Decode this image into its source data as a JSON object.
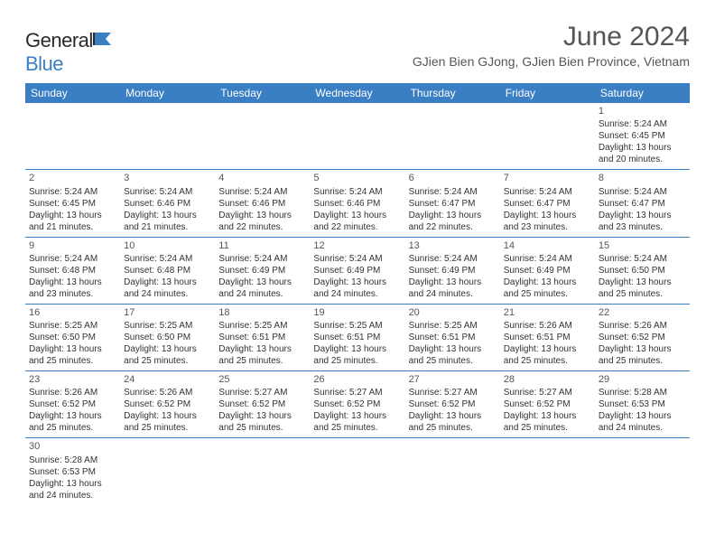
{
  "brand": {
    "name_dark": "General",
    "name_blue": "Blue"
  },
  "title": "June 2024",
  "location": "GJien Bien GJong, GJien Bien Province, Vietnam",
  "colors": {
    "header_bg": "#3a7fc4",
    "header_text": "#ffffff",
    "border": "#3a7fc4",
    "body_text": "#333333",
    "title_text": "#555555"
  },
  "fonts": {
    "title_size": 30,
    "location_size": 14,
    "dayhead_size": 12,
    "cell_size": 10
  },
  "day_headers": [
    "Sunday",
    "Monday",
    "Tuesday",
    "Wednesday",
    "Thursday",
    "Friday",
    "Saturday"
  ],
  "weeks": [
    [
      null,
      null,
      null,
      null,
      null,
      null,
      {
        "d": "1",
        "sr": "Sunrise: 5:24 AM",
        "ss": "Sunset: 6:45 PM",
        "dl1": "Daylight: 13 hours",
        "dl2": "and 20 minutes."
      }
    ],
    [
      {
        "d": "2",
        "sr": "Sunrise: 5:24 AM",
        "ss": "Sunset: 6:45 PM",
        "dl1": "Daylight: 13 hours",
        "dl2": "and 21 minutes."
      },
      {
        "d": "3",
        "sr": "Sunrise: 5:24 AM",
        "ss": "Sunset: 6:46 PM",
        "dl1": "Daylight: 13 hours",
        "dl2": "and 21 minutes."
      },
      {
        "d": "4",
        "sr": "Sunrise: 5:24 AM",
        "ss": "Sunset: 6:46 PM",
        "dl1": "Daylight: 13 hours",
        "dl2": "and 22 minutes."
      },
      {
        "d": "5",
        "sr": "Sunrise: 5:24 AM",
        "ss": "Sunset: 6:46 PM",
        "dl1": "Daylight: 13 hours",
        "dl2": "and 22 minutes."
      },
      {
        "d": "6",
        "sr": "Sunrise: 5:24 AM",
        "ss": "Sunset: 6:47 PM",
        "dl1": "Daylight: 13 hours",
        "dl2": "and 22 minutes."
      },
      {
        "d": "7",
        "sr": "Sunrise: 5:24 AM",
        "ss": "Sunset: 6:47 PM",
        "dl1": "Daylight: 13 hours",
        "dl2": "and 23 minutes."
      },
      {
        "d": "8",
        "sr": "Sunrise: 5:24 AM",
        "ss": "Sunset: 6:47 PM",
        "dl1": "Daylight: 13 hours",
        "dl2": "and 23 minutes."
      }
    ],
    [
      {
        "d": "9",
        "sr": "Sunrise: 5:24 AM",
        "ss": "Sunset: 6:48 PM",
        "dl1": "Daylight: 13 hours",
        "dl2": "and 23 minutes."
      },
      {
        "d": "10",
        "sr": "Sunrise: 5:24 AM",
        "ss": "Sunset: 6:48 PM",
        "dl1": "Daylight: 13 hours",
        "dl2": "and 24 minutes."
      },
      {
        "d": "11",
        "sr": "Sunrise: 5:24 AM",
        "ss": "Sunset: 6:49 PM",
        "dl1": "Daylight: 13 hours",
        "dl2": "and 24 minutes."
      },
      {
        "d": "12",
        "sr": "Sunrise: 5:24 AM",
        "ss": "Sunset: 6:49 PM",
        "dl1": "Daylight: 13 hours",
        "dl2": "and 24 minutes."
      },
      {
        "d": "13",
        "sr": "Sunrise: 5:24 AM",
        "ss": "Sunset: 6:49 PM",
        "dl1": "Daylight: 13 hours",
        "dl2": "and 24 minutes."
      },
      {
        "d": "14",
        "sr": "Sunrise: 5:24 AM",
        "ss": "Sunset: 6:49 PM",
        "dl1": "Daylight: 13 hours",
        "dl2": "and 25 minutes."
      },
      {
        "d": "15",
        "sr": "Sunrise: 5:24 AM",
        "ss": "Sunset: 6:50 PM",
        "dl1": "Daylight: 13 hours",
        "dl2": "and 25 minutes."
      }
    ],
    [
      {
        "d": "16",
        "sr": "Sunrise: 5:25 AM",
        "ss": "Sunset: 6:50 PM",
        "dl1": "Daylight: 13 hours",
        "dl2": "and 25 minutes."
      },
      {
        "d": "17",
        "sr": "Sunrise: 5:25 AM",
        "ss": "Sunset: 6:50 PM",
        "dl1": "Daylight: 13 hours",
        "dl2": "and 25 minutes."
      },
      {
        "d": "18",
        "sr": "Sunrise: 5:25 AM",
        "ss": "Sunset: 6:51 PM",
        "dl1": "Daylight: 13 hours",
        "dl2": "and 25 minutes."
      },
      {
        "d": "19",
        "sr": "Sunrise: 5:25 AM",
        "ss": "Sunset: 6:51 PM",
        "dl1": "Daylight: 13 hours",
        "dl2": "and 25 minutes."
      },
      {
        "d": "20",
        "sr": "Sunrise: 5:25 AM",
        "ss": "Sunset: 6:51 PM",
        "dl1": "Daylight: 13 hours",
        "dl2": "and 25 minutes."
      },
      {
        "d": "21",
        "sr": "Sunrise: 5:26 AM",
        "ss": "Sunset: 6:51 PM",
        "dl1": "Daylight: 13 hours",
        "dl2": "and 25 minutes."
      },
      {
        "d": "22",
        "sr": "Sunrise: 5:26 AM",
        "ss": "Sunset: 6:52 PM",
        "dl1": "Daylight: 13 hours",
        "dl2": "and 25 minutes."
      }
    ],
    [
      {
        "d": "23",
        "sr": "Sunrise: 5:26 AM",
        "ss": "Sunset: 6:52 PM",
        "dl1": "Daylight: 13 hours",
        "dl2": "and 25 minutes."
      },
      {
        "d": "24",
        "sr": "Sunrise: 5:26 AM",
        "ss": "Sunset: 6:52 PM",
        "dl1": "Daylight: 13 hours",
        "dl2": "and 25 minutes."
      },
      {
        "d": "25",
        "sr": "Sunrise: 5:27 AM",
        "ss": "Sunset: 6:52 PM",
        "dl1": "Daylight: 13 hours",
        "dl2": "and 25 minutes."
      },
      {
        "d": "26",
        "sr": "Sunrise: 5:27 AM",
        "ss": "Sunset: 6:52 PM",
        "dl1": "Daylight: 13 hours",
        "dl2": "and 25 minutes."
      },
      {
        "d": "27",
        "sr": "Sunrise: 5:27 AM",
        "ss": "Sunset: 6:52 PM",
        "dl1": "Daylight: 13 hours",
        "dl2": "and 25 minutes."
      },
      {
        "d": "28",
        "sr": "Sunrise: 5:27 AM",
        "ss": "Sunset: 6:52 PM",
        "dl1": "Daylight: 13 hours",
        "dl2": "and 25 minutes."
      },
      {
        "d": "29",
        "sr": "Sunrise: 5:28 AM",
        "ss": "Sunset: 6:53 PM",
        "dl1": "Daylight: 13 hours",
        "dl2": "and 24 minutes."
      }
    ],
    [
      {
        "d": "30",
        "sr": "Sunrise: 5:28 AM",
        "ss": "Sunset: 6:53 PM",
        "dl1": "Daylight: 13 hours",
        "dl2": "and 24 minutes."
      },
      null,
      null,
      null,
      null,
      null,
      null
    ]
  ]
}
